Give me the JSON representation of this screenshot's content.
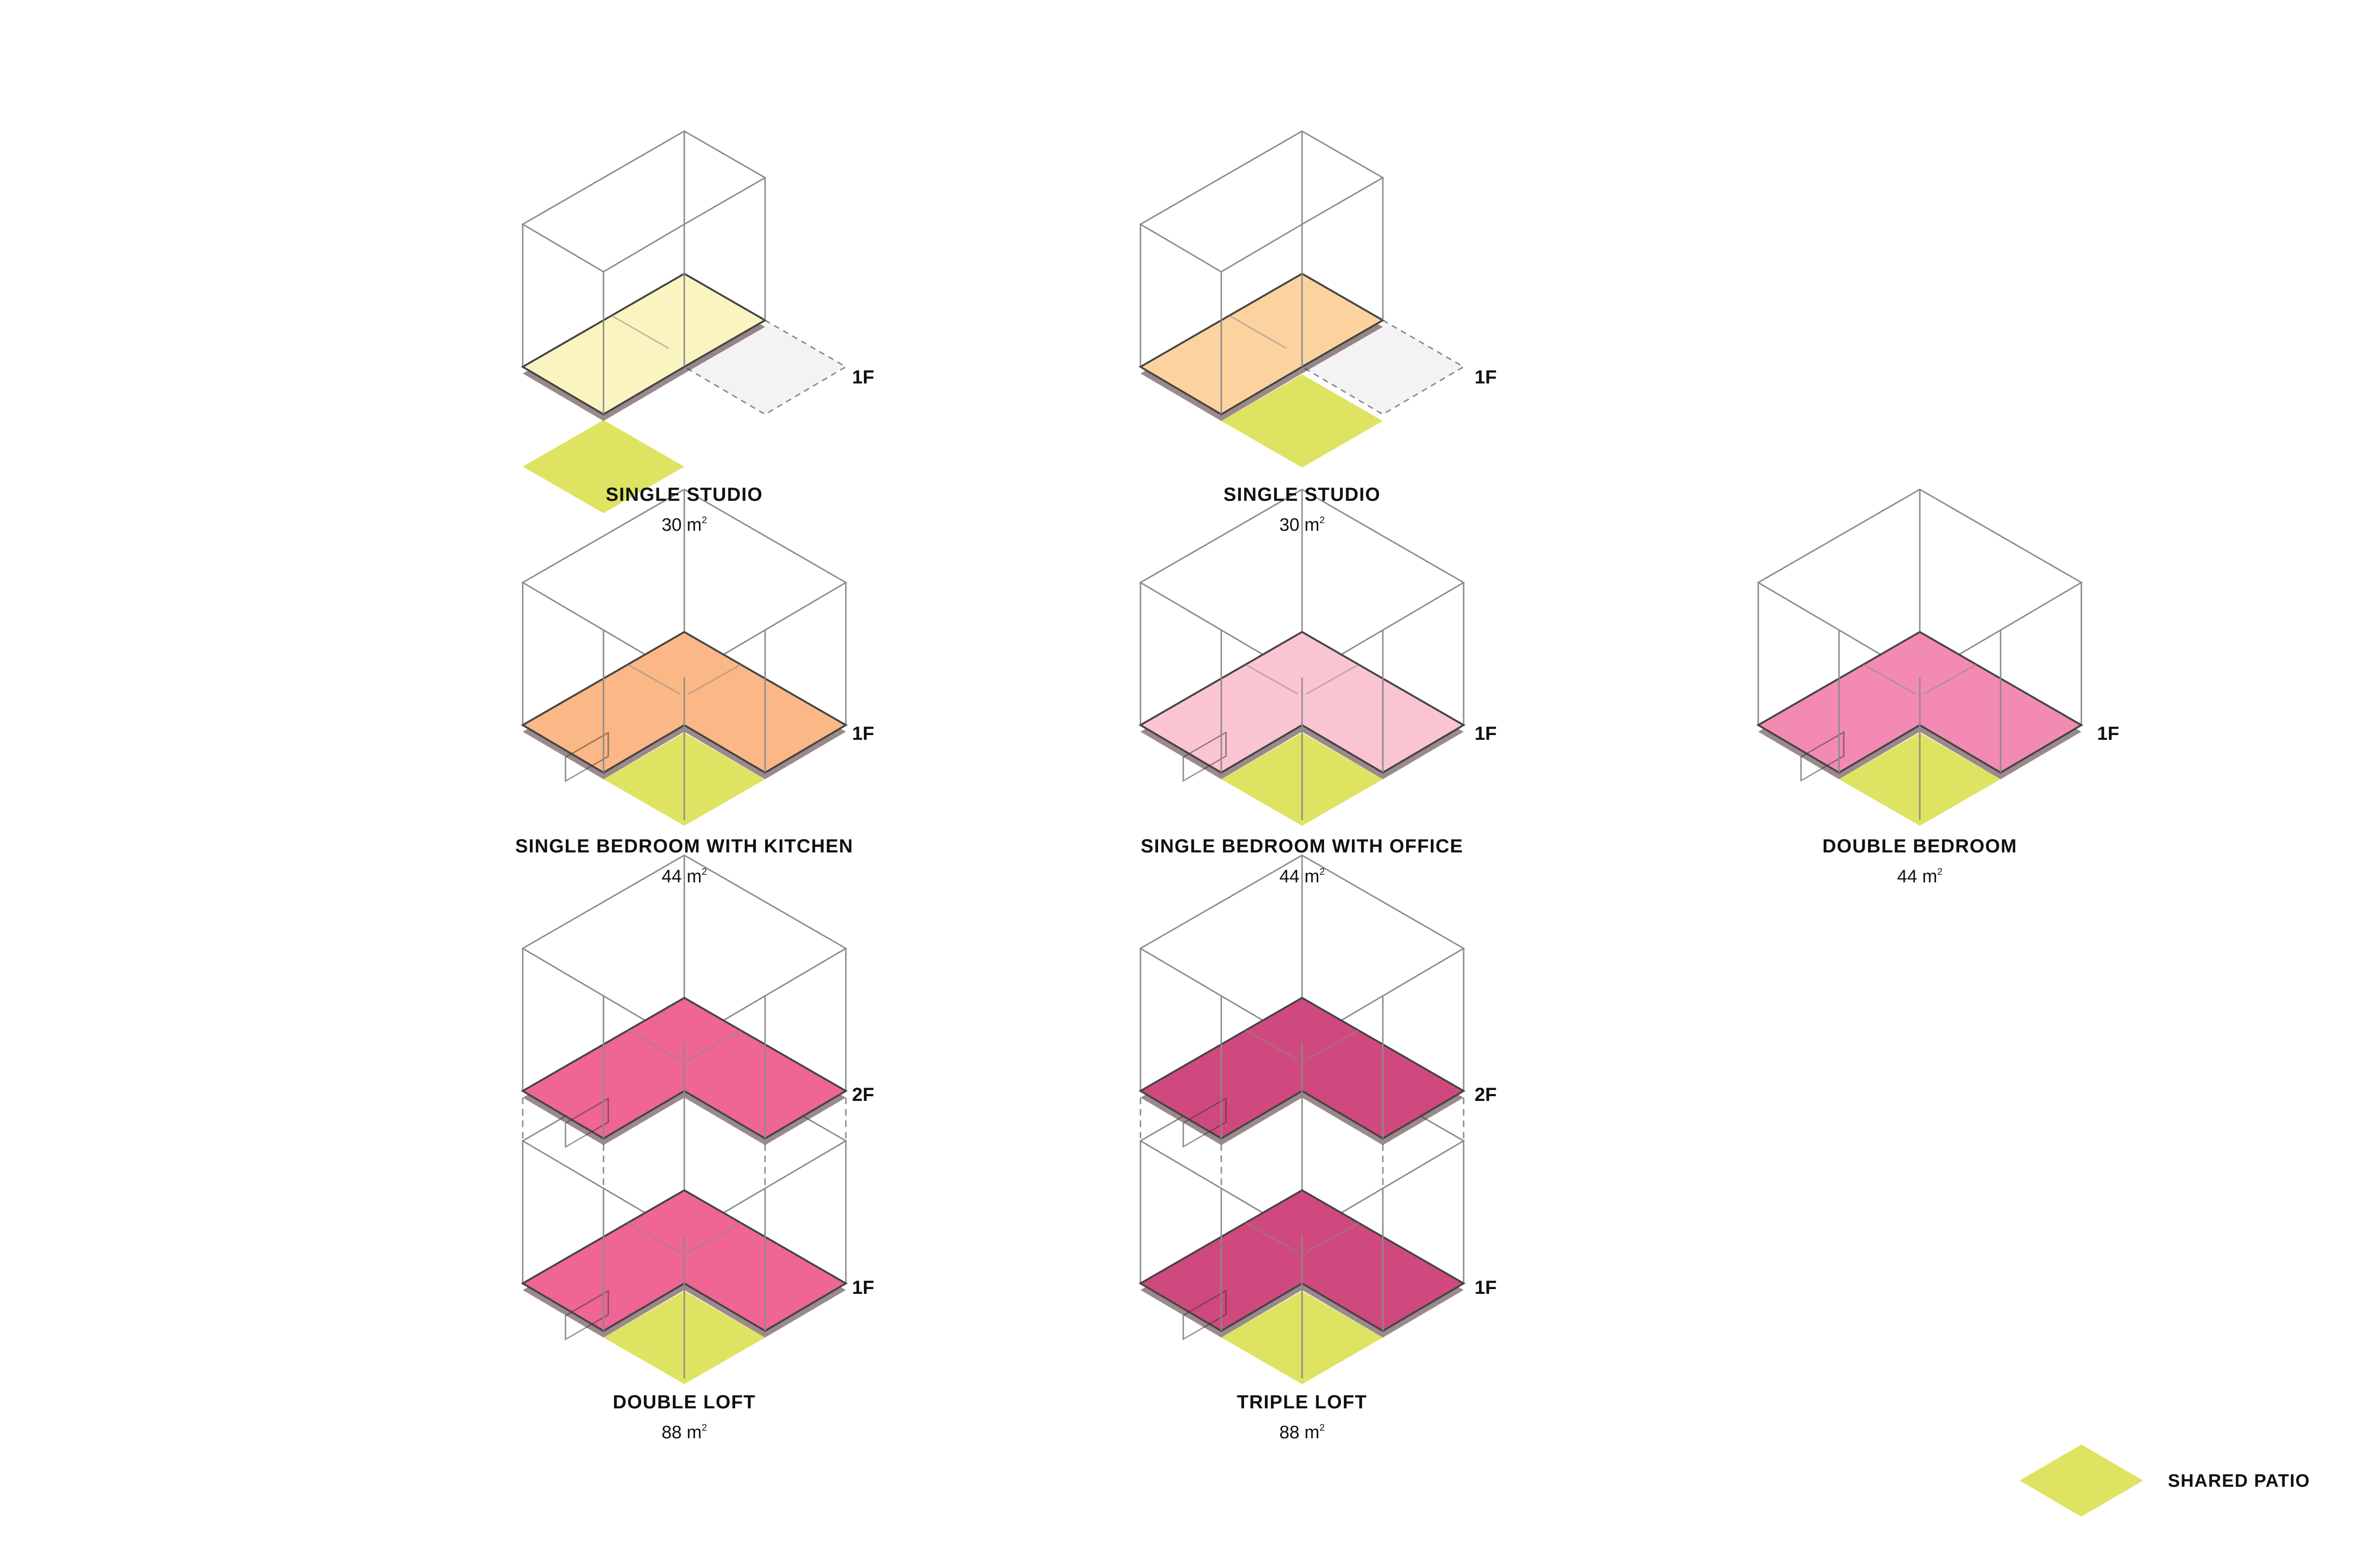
{
  "colors": {
    "patio": "#dfe362",
    "yellow": "#faf4c0",
    "peach": "#fcd39f",
    "orange": "#fbb786",
    "light_pink": "#fbc4d1",
    "pink": "#f28ab3",
    "hot_pink": "#ee6596",
    "raspberry": "#d0497e",
    "ground_grey": "#f3f3f3",
    "outline": "#8a8a8a"
  },
  "units": [
    {
      "id": "single-studio-1",
      "title": "SINGLE STUDIO",
      "area_number": "30 m",
      "area_sup": "2",
      "floors": [
        "1F"
      ],
      "color_key": "yellow",
      "shape": "rect-left"
    },
    {
      "id": "single-studio-2",
      "title": "SINGLE STUDIO",
      "area_number": "30 m",
      "area_sup": "2",
      "floors": [
        "1F"
      ],
      "color_key": "peach",
      "shape": "rect-right"
    },
    {
      "id": "single-bedroom-kitchen",
      "title": "SINGLE BEDROOM WITH KITCHEN",
      "area_number": "44 m",
      "area_sup": "2",
      "floors": [
        "1F"
      ],
      "color_key": "orange",
      "shape": "l"
    },
    {
      "id": "single-bedroom-office",
      "title": "SINGLE BEDROOM WITH OFFICE",
      "area_number": "44 m",
      "area_sup": "2",
      "floors": [
        "1F"
      ],
      "color_key": "light_pink",
      "shape": "l"
    },
    {
      "id": "double-bedroom",
      "title": "DOUBLE BEDROOM",
      "area_number": "44 m",
      "area_sup": "2",
      "floors": [
        "1F"
      ],
      "color_key": "pink",
      "shape": "l"
    },
    {
      "id": "double-loft",
      "title": "DOUBLE LOFT",
      "area_number": "88 m",
      "area_sup": "2",
      "floors": [
        "2F",
        "1F"
      ],
      "color_key": "hot_pink",
      "shape": "l"
    },
    {
      "id": "triple-loft",
      "title": "TRIPLE LOFT",
      "area_number": "88 m",
      "area_sup": "2",
      "floors": [
        "2F",
        "1F"
      ],
      "color_key": "raspberry",
      "shape": "l"
    }
  ],
  "legend": {
    "label": "SHARED PATIO",
    "color_key": "patio"
  }
}
